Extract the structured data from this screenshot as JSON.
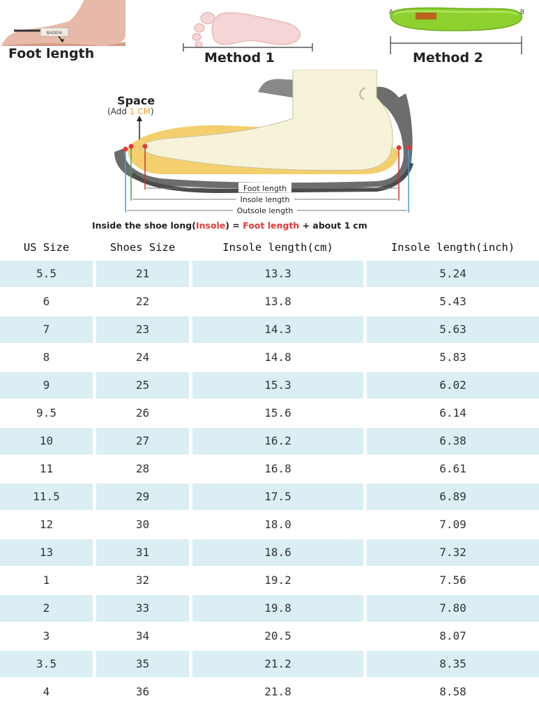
{
  "measurement_guide": {
    "methods": [
      "Foot length",
      "Method 1",
      "Method 2"
    ],
    "point_labels": [
      "A",
      "B"
    ]
  },
  "diagram": {
    "space_label": "Space",
    "space_note_prefix": "(Add ",
    "space_note_value": "1 CM",
    "space_note_suffix": ")",
    "foot_length_label": "Foot length",
    "insole_length_label": "Insole length",
    "outsole_length_label": "Outsole length",
    "formula": {
      "prefix": "Inside the shoe long(",
      "insole": "Insole",
      "equals": ") = ",
      "foot_length": "Foot length",
      "suffix": " + about ",
      "amount": "1",
      "unit": "cm"
    },
    "colors": {
      "accent_red": "#e53935",
      "accent_orange": "#f0a030",
      "sole_gray": "#707070"
    }
  },
  "size_table": {
    "headers": [
      "US Size",
      "Shoes Size",
      "Insole length(cm)",
      "Insole length(inch)"
    ],
    "shade_color": "#daeef3",
    "rows": [
      [
        "5.5",
        "21",
        "13.3",
        "5.24"
      ],
      [
        "6",
        "22",
        "13.8",
        "5.43"
      ],
      [
        "7",
        "23",
        "14.3",
        "5.63"
      ],
      [
        "8",
        "24",
        "14.8",
        "5.83"
      ],
      [
        "9",
        "25",
        "15.3",
        "6.02"
      ],
      [
        "9.5",
        "26",
        "15.6",
        "6.14"
      ],
      [
        "10",
        "27",
        "16.2",
        "6.38"
      ],
      [
        "11",
        "28",
        "16.8",
        "6.61"
      ],
      [
        "11.5",
        "29",
        "17.5",
        "6.89"
      ],
      [
        "12",
        "30",
        "18.0",
        "7.09"
      ],
      [
        "13",
        "31",
        "18.6",
        "7.32"
      ],
      [
        "1",
        "32",
        "19.2",
        "7.56"
      ],
      [
        "2",
        "33",
        "19.8",
        "7.80"
      ],
      [
        "3",
        "34",
        "20.5",
        "8.07"
      ],
      [
        "3.5",
        "35",
        "21.2",
        "8.35"
      ],
      [
        "4",
        "36",
        "21.8",
        "8.58"
      ]
    ]
  }
}
